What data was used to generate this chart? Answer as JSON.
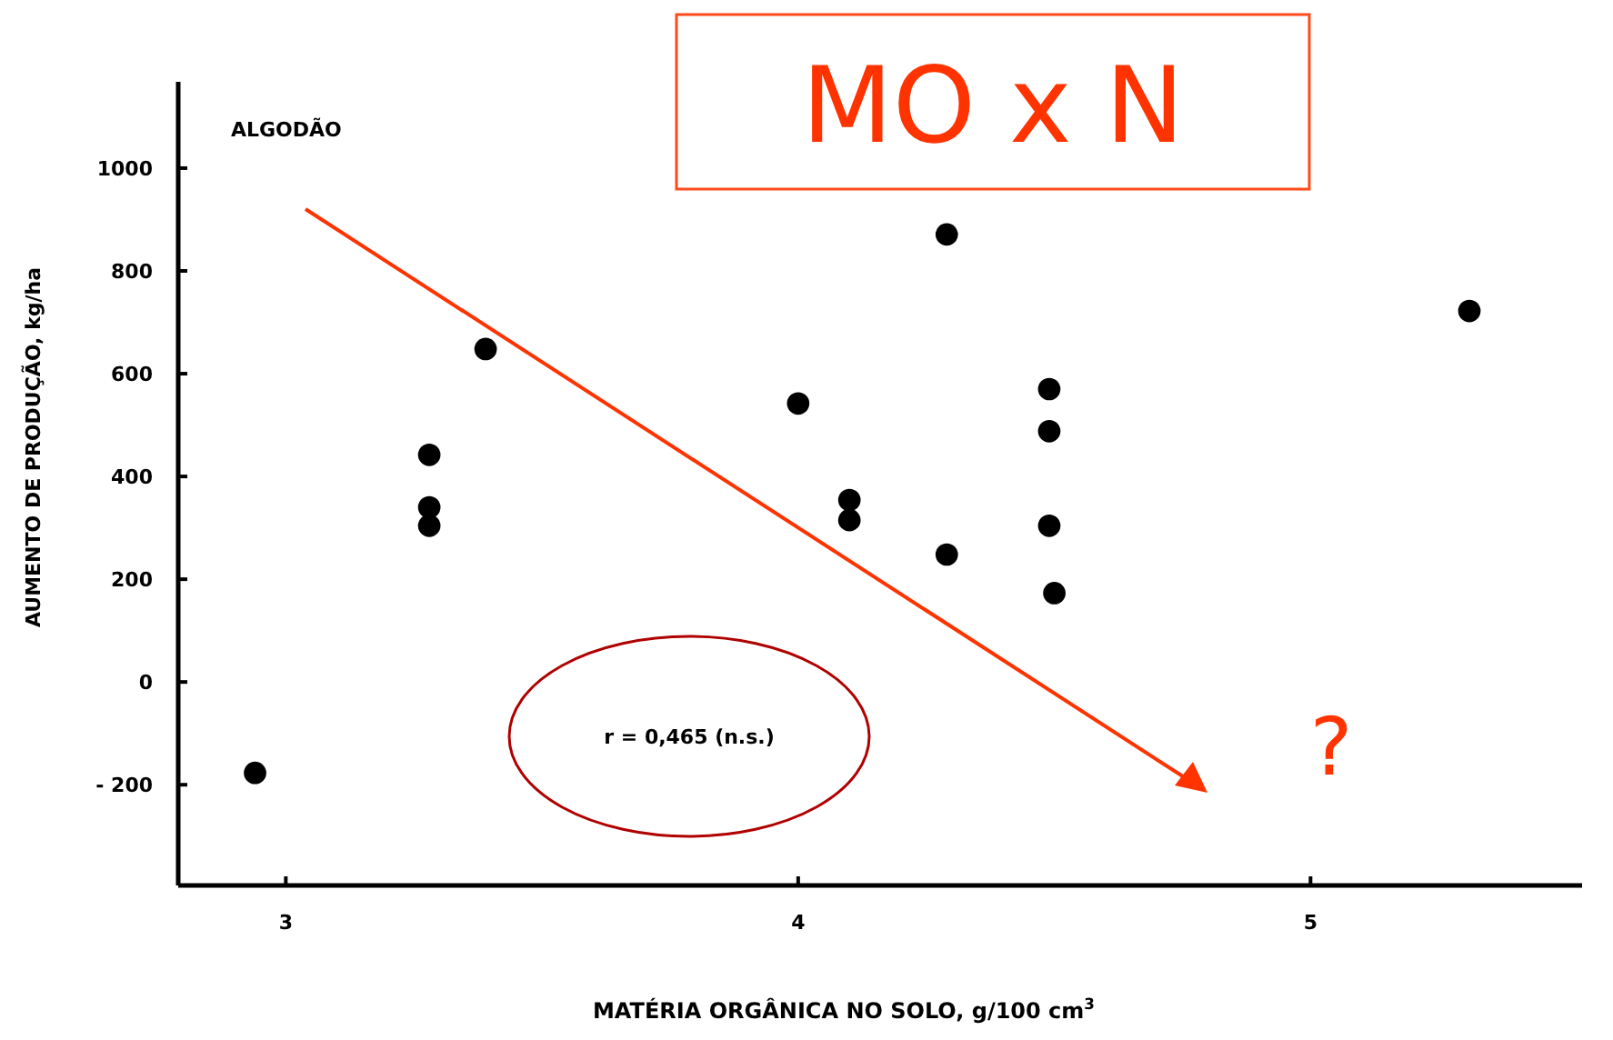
{
  "chart_data": {
    "type": "scatter",
    "title": "MO x N",
    "xlabel": "MATÉRIA ORGÂNICA NO SOLO, g/100 cm$^{3}$",
    "ylabel": "AUMENTO DE PRODUÇÃO, kg/ha",
    "annotations": [
      "ALGODÃO",
      "r = 0,465 (n.s.)",
      "?"
    ],
    "x": [
      2.94,
      3.28,
      3.28,
      3.28,
      3.39,
      4.0,
      4.1,
      4.1,
      4.29,
      4.29,
      4.49,
      4.49,
      4.49,
      4.5,
      5.31
    ],
    "values": [
      -177,
      442,
      340,
      304,
      648,
      542,
      354,
      315,
      871,
      248,
      570,
      488,
      304,
      173,
      722
    ],
    "color": "#000000",
    "marker": "circle",
    "xlim": [
      2.79,
      5.53
    ],
    "xticks": [
      3,
      4,
      5
    ],
    "ylim": [
      -396,
      1168
    ],
    "yticks": [
      {
        "value": -200,
        "label": "- 200"
      },
      0,
      200,
      400,
      600,
      800,
      1000
    ],
    "grid": false
  }
}
